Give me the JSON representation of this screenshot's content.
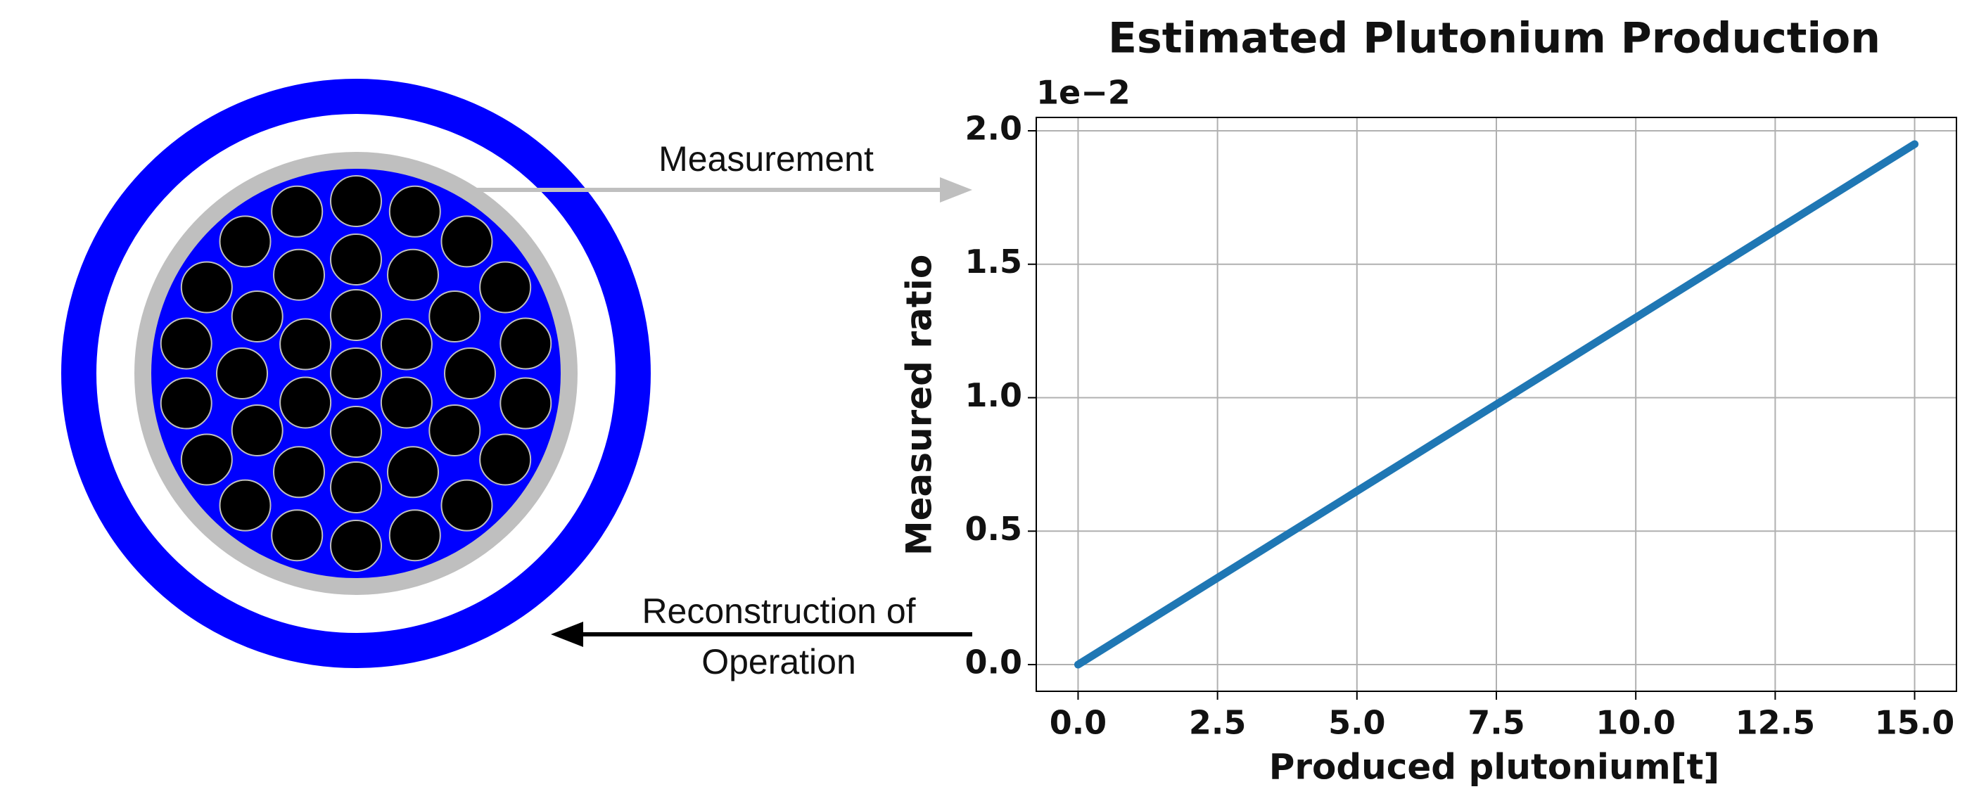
{
  "diagram": {
    "measurement_label": "Measurement",
    "reconstruction_label": [
      "Reconstruction of",
      "Operation"
    ]
  },
  "chart_data": {
    "type": "line",
    "title": "Estimated Plutonium Production",
    "x_label": "Produced plutonium[t]",
    "y_label": "Measured ratio",
    "y_offset_label": "1e−2",
    "x": [
      0,
      2.5,
      5,
      7.5,
      10,
      12.5,
      15
    ],
    "values": [
      0,
      0.00325,
      0.0065,
      0.00975,
      0.013,
      0.01625,
      0.0195
    ],
    "color": "#1f77b4",
    "xlim": [
      -0.75,
      15.75
    ],
    "ylim": [
      -0.001,
      0.0205
    ],
    "xticks": [
      {
        "value": 0,
        "label": "0.0"
      },
      {
        "value": 2.5,
        "label": "2.5"
      },
      {
        "value": 5,
        "label": "5.0"
      },
      {
        "value": 7.5,
        "label": "7.5"
      },
      {
        "value": 10,
        "label": "10.0"
      },
      {
        "value": 12.5,
        "label": "12.5"
      },
      {
        "value": 15,
        "label": "15.0"
      }
    ],
    "yticks": [
      {
        "value": 0,
        "label": "0.0"
      },
      {
        "value": 0.005,
        "label": "0.5"
      },
      {
        "value": 0.01,
        "label": "1.0"
      },
      {
        "value": 0.015,
        "label": "1.5"
      },
      {
        "value": 0.02,
        "label": "2.0"
      }
    ],
    "grid": true
  }
}
